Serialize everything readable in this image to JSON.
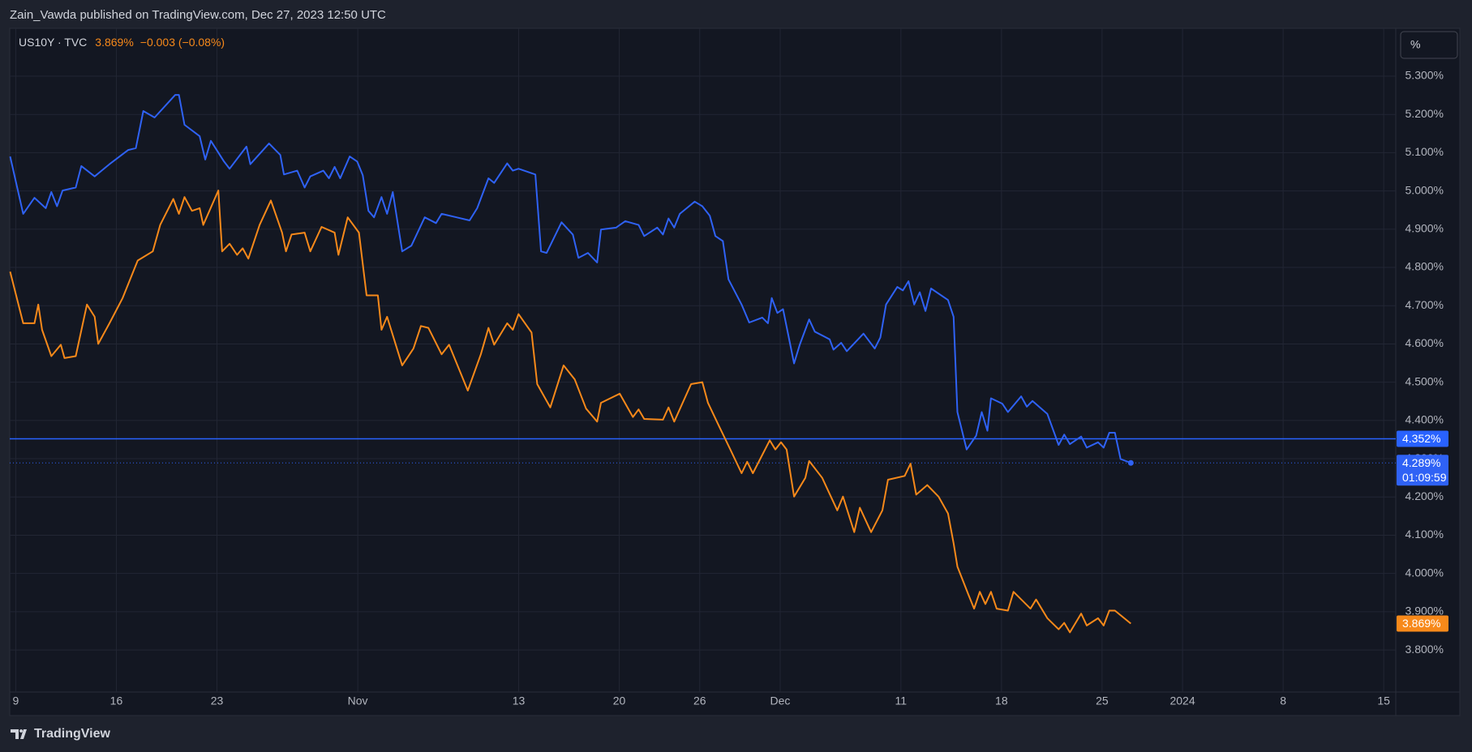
{
  "header": {
    "published": "Zain_Vawda published on TradingView.com, Dec 27, 2023 12:50 UTC"
  },
  "ui": {
    "scale_button": "%",
    "brand": "TradingView"
  },
  "chart_data": {
    "type": "line",
    "legend": {
      "symbol": "US10Y · TVC",
      "last": "3.869%",
      "change": "−0.003 (−0.08%)"
    },
    "xlim": [
      -0.3,
      68.6
    ],
    "xticks": [
      {
        "value": 0,
        "label": "9"
      },
      {
        "value": 5,
        "label": "16"
      },
      {
        "value": 10,
        "label": "23"
      },
      {
        "value": 17,
        "label": "Nov"
      },
      {
        "value": 25,
        "label": "13"
      },
      {
        "value": 30,
        "label": "20"
      },
      {
        "value": 34,
        "label": "26"
      },
      {
        "value": 38,
        "label": "Dec"
      },
      {
        "value": 44,
        "label": "11"
      },
      {
        "value": 49,
        "label": "18"
      },
      {
        "value": 54,
        "label": "25"
      },
      {
        "value": 58,
        "label": "2024"
      },
      {
        "value": 63,
        "label": "8"
      },
      {
        "value": 68,
        "label": "15"
      }
    ],
    "ylim": [
      3.69,
      5.425
    ],
    "yticks": [
      {
        "value": 3.8,
        "label": "3.800%"
      },
      {
        "value": 3.9,
        "label": "3.900%"
      },
      {
        "value": 4.0,
        "label": "4.000%"
      },
      {
        "value": 4.1,
        "label": "4.100%"
      },
      {
        "value": 4.2,
        "label": "4.200%"
      },
      {
        "value": 4.3,
        "label": "4.300%"
      },
      {
        "value": 4.4,
        "label": "4.400%"
      },
      {
        "value": 4.5,
        "label": "4.500%"
      },
      {
        "value": 4.6,
        "label": "4.600%"
      },
      {
        "value": 4.7,
        "label": "4.700%"
      },
      {
        "value": 4.8,
        "label": "4.800%"
      },
      {
        "value": 4.9,
        "label": "4.900%"
      },
      {
        "value": 5.0,
        "label": "5.000%"
      },
      {
        "value": 5.1,
        "label": "5.100%"
      },
      {
        "value": 5.2,
        "label": "5.200%"
      },
      {
        "value": 5.3,
        "label": "5.300%"
      }
    ],
    "grid": true,
    "hline": {
      "value": 4.352,
      "label": "4.352%",
      "color": "#2962ff"
    },
    "series": [
      {
        "color": "#2f62f5",
        "price_line": true,
        "last_label": "4.289%",
        "countdown": "01:09:59",
        "x": [
          -0.28,
          0.37,
          0.93,
          1.49,
          1.77,
          2.05,
          2.33,
          2.98,
          3.26,
          3.92,
          4.66,
          5.59,
          5.97,
          6.34,
          6.9,
          7.93,
          8.11,
          8.39,
          9.14,
          9.42,
          9.7,
          10.35,
          10.63,
          11.47,
          11.66,
          12.59,
          13.15,
          13.33,
          13.99,
          14.36,
          14.64,
          15.29,
          15.57,
          15.85,
          16.13,
          16.6,
          16.97,
          17.25,
          17.53,
          17.81,
          18.18,
          18.46,
          18.74,
          19.21,
          19.67,
          20.33,
          20.89,
          21.17,
          21.91,
          22.56,
          22.94,
          23.5,
          23.78,
          24.43,
          24.71,
          24.99,
          25.83,
          26.11,
          26.39,
          27.13,
          27.69,
          27.97,
          28.44,
          28.9,
          29.09,
          29.84,
          30.3,
          30.96,
          31.24,
          31.89,
          32.17,
          32.45,
          32.73,
          33.01,
          33.75,
          34.13,
          34.5,
          34.78,
          35.15,
          35.43,
          36.08,
          36.46,
          37.11,
          37.39,
          37.58,
          37.86,
          38.14,
          38.69,
          38.97,
          39.44,
          39.72,
          40.46,
          40.65,
          41.03,
          41.31,
          42.14,
          42.7,
          42.98,
          43.26,
          43.82,
          44.1,
          44.38,
          44.66,
          44.94,
          45.22,
          45.5,
          46.34,
          46.62,
          46.81,
          47.27,
          47.74,
          48.02,
          48.3,
          48.48,
          49.04,
          49.32,
          49.98,
          50.26,
          50.54,
          51.28,
          51.84,
          52.12,
          52.4,
          52.96,
          53.24,
          53.8,
          54.08,
          54.36,
          54.64,
          54.92,
          55.43
        ],
        "values": [
          5.09,
          4.94,
          4.982,
          4.955,
          4.997,
          4.96,
          5.001,
          5.009,
          5.065,
          5.038,
          5.07,
          5.107,
          5.112,
          5.209,
          5.192,
          5.251,
          5.251,
          5.173,
          5.143,
          5.082,
          5.131,
          5.077,
          5.058,
          5.116,
          5.07,
          5.124,
          5.094,
          5.043,
          5.053,
          5.009,
          5.038,
          5.053,
          5.033,
          5.063,
          5.033,
          5.09,
          5.077,
          5.041,
          4.948,
          4.931,
          4.984,
          4.94,
          4.997,
          4.842,
          4.857,
          4.931,
          4.916,
          4.94,
          4.931,
          4.923,
          4.955,
          5.033,
          5.021,
          5.072,
          5.053,
          5.058,
          5.043,
          4.842,
          4.838,
          4.918,
          4.886,
          4.825,
          4.838,
          4.813,
          4.899,
          4.904,
          4.921,
          4.911,
          4.882,
          4.904,
          4.886,
          4.928,
          4.904,
          4.94,
          4.972,
          4.96,
          4.935,
          4.882,
          4.869,
          4.769,
          4.703,
          4.656,
          4.669,
          4.654,
          4.72,
          4.681,
          4.691,
          4.549,
          4.598,
          4.664,
          4.632,
          4.612,
          4.585,
          4.603,
          4.581,
          4.627,
          4.588,
          4.617,
          4.703,
          4.749,
          4.74,
          4.764,
          4.703,
          4.735,
          4.686,
          4.745,
          4.715,
          4.671,
          4.422,
          4.324,
          4.36,
          4.422,
          4.373,
          4.458,
          4.444,
          4.422,
          4.463,
          4.436,
          4.451,
          4.417,
          4.336,
          4.363,
          4.338,
          4.358,
          4.329,
          4.343,
          4.329,
          4.368,
          4.368,
          4.299,
          4.289
        ]
      },
      {
        "name": "US10Y · TVC",
        "color": "#f7891a",
        "last_label": "3.869%",
        "x": [
          -0.28,
          0.37,
          0.93,
          1.12,
          1.31,
          1.77,
          2.24,
          2.42,
          2.98,
          3.54,
          3.92,
          4.1,
          4.66,
          5.31,
          6.06,
          6.81,
          7.18,
          7.83,
          8.11,
          8.39,
          8.76,
          9.14,
          9.32,
          10.07,
          10.26,
          10.63,
          11.0,
          11.28,
          11.56,
          12.12,
          12.68,
          13.24,
          13.43,
          13.71,
          14.36,
          14.64,
          15.2,
          15.85,
          16.04,
          16.5,
          17.06,
          17.44,
          18.0,
          18.18,
          18.46,
          19.21,
          19.77,
          20.14,
          20.51,
          21.17,
          21.54,
          22.47,
          23.12,
          23.5,
          23.78,
          24.43,
          24.71,
          24.99,
          25.64,
          25.92,
          26.57,
          27.23,
          27.79,
          28.35,
          28.9,
          29.09,
          30.02,
          30.68,
          30.96,
          31.24,
          32.17,
          32.45,
          32.73,
          33.57,
          34.13,
          34.41,
          34.96,
          35.52,
          36.08,
          36.36,
          36.64,
          37.48,
          37.76,
          38.04,
          38.32,
          38.69,
          39.25,
          39.44,
          40.09,
          40.84,
          41.12,
          41.68,
          41.96,
          42.52,
          43.08,
          43.36,
          44.19,
          44.48,
          44.76,
          45.31,
          45.87,
          46.34,
          46.62,
          46.81,
          47.36,
          47.64,
          47.92,
          48.2,
          48.48,
          48.76,
          49.32,
          49.6,
          50.44,
          50.72,
          51.28,
          51.84,
          52.12,
          52.4,
          52.96,
          53.24,
          53.8,
          54.08,
          54.36,
          54.64,
          55.43
        ],
        "values": [
          4.789,
          4.654,
          4.654,
          4.703,
          4.637,
          4.568,
          4.598,
          4.563,
          4.568,
          4.703,
          4.671,
          4.6,
          4.654,
          4.72,
          4.818,
          4.842,
          4.911,
          4.979,
          4.94,
          4.984,
          4.948,
          4.955,
          4.911,
          5.001,
          4.842,
          4.862,
          4.833,
          4.85,
          4.823,
          4.911,
          4.975,
          4.891,
          4.842,
          4.886,
          4.891,
          4.842,
          4.906,
          4.891,
          4.833,
          4.931,
          4.891,
          4.727,
          4.727,
          4.637,
          4.671,
          4.544,
          4.588,
          4.647,
          4.642,
          4.573,
          4.598,
          4.478,
          4.573,
          4.642,
          4.598,
          4.654,
          4.637,
          4.678,
          4.63,
          4.495,
          4.434,
          4.544,
          4.507,
          4.431,
          4.397,
          4.446,
          4.47,
          4.409,
          4.429,
          4.404,
          4.402,
          4.434,
          4.397,
          4.495,
          4.5,
          4.446,
          4.385,
          4.324,
          4.262,
          4.292,
          4.262,
          4.348,
          4.324,
          4.343,
          4.324,
          4.201,
          4.25,
          4.294,
          4.25,
          4.165,
          4.201,
          4.108,
          4.172,
          4.108,
          4.165,
          4.245,
          4.255,
          4.287,
          4.206,
          4.231,
          4.201,
          4.157,
          4.079,
          4.018,
          3.944,
          3.908,
          3.952,
          3.92,
          3.952,
          3.908,
          3.903,
          3.952,
          3.908,
          3.932,
          3.883,
          3.854,
          3.871,
          3.846,
          3.895,
          3.864,
          3.883,
          3.864,
          3.903,
          3.903,
          3.869
        ]
      }
    ]
  }
}
